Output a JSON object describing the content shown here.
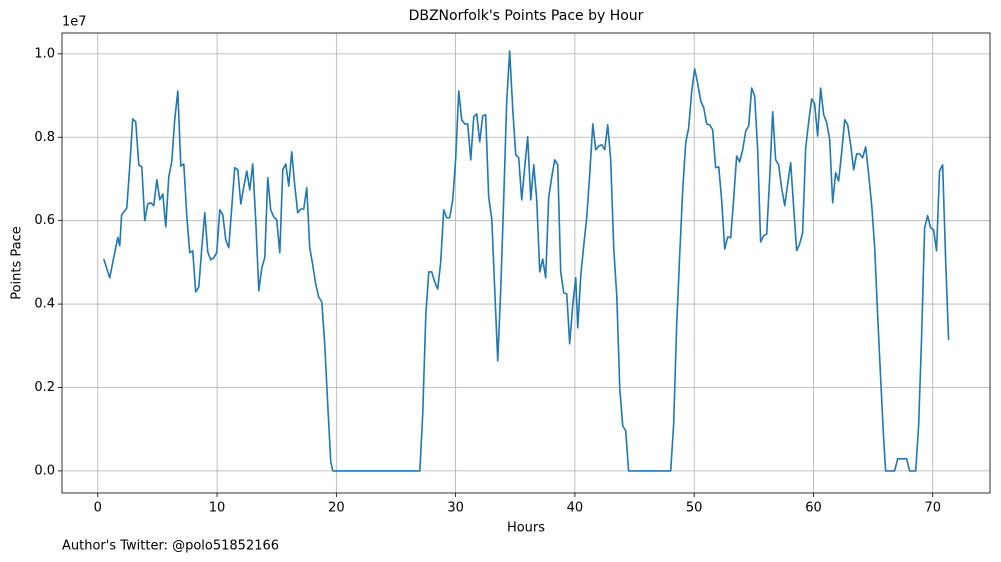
{
  "chart_data": {
    "type": "line",
    "title": "DBZNorfolk's Points Pace by Hour",
    "x_label": "Hours",
    "y_label": "Points Pace",
    "y_offset_label": "1e7",
    "xlim": [
      -3.0,
      74.8
    ],
    "xticks": [
      0,
      10,
      20,
      30,
      40,
      50,
      60,
      70
    ],
    "ylim": [
      -0.053,
      1.05
    ],
    "yticks": [
      {
        "value": 0,
        "label": "0.0"
      },
      0.2,
      0.4,
      0.6,
      0.8,
      {
        "value": 1,
        "label": "1.0"
      }
    ],
    "grid": true,
    "x": [
      0.5,
      1.0,
      1.5,
      1.68,
      1.84,
      2.0,
      2.43,
      2.68,
      2.93,
      3.18,
      3.44,
      3.69,
      3.94,
      4.19,
      4.44,
      4.69,
      4.95,
      5.2,
      5.45,
      5.7,
      5.95,
      6.2,
      6.45,
      6.71,
      6.96,
      7.21,
      7.46,
      7.71,
      7.96,
      8.21,
      8.47,
      8.72,
      8.97,
      9.22,
      9.47,
      9.72,
      9.97,
      10.23,
      10.48,
      10.73,
      10.98,
      11.23,
      11.48,
      11.74,
      11.99,
      12.24,
      12.49,
      12.74,
      12.99,
      13.24,
      13.5,
      13.75,
      14.0,
      14.25,
      14.5,
      14.75,
      15.0,
      15.26,
      15.51,
      15.76,
      16.01,
      16.26,
      16.51,
      16.76,
      17.02,
      17.27,
      17.52,
      17.77,
      18.02,
      18.27,
      18.52,
      18.78,
      19.03,
      19.28,
      19.53,
      19.7,
      27.0,
      27.24,
      27.5,
      27.75,
      28.0,
      28.25,
      28.5,
      28.75,
      29.0,
      29.25,
      29.5,
      29.76,
      30.0,
      30.26,
      30.51,
      30.76,
      31.01,
      31.27,
      31.52,
      31.77,
      32.02,
      32.27,
      32.52,
      32.77,
      33.03,
      33.28,
      33.53,
      33.78,
      34.03,
      34.28,
      34.53,
      34.79,
      35.04,
      35.29,
      35.54,
      35.79,
      36.04,
      36.3,
      36.55,
      36.8,
      37.05,
      37.3,
      37.55,
      37.8,
      38.06,
      38.31,
      38.56,
      38.81,
      39.07,
      39.32,
      39.56,
      39.82,
      40.07,
      40.24,
      40.49,
      40.74,
      40.99,
      41.24,
      41.5,
      41.75,
      42.0,
      42.25,
      42.5,
      42.75,
      43.0,
      43.26,
      43.51,
      43.76,
      44.01,
      44.26,
      44.5,
      48.03,
      48.28,
      48.53,
      48.79,
      49.04,
      49.29,
      49.54,
      49.79,
      50.04,
      50.3,
      50.55,
      50.8,
      51.05,
      51.3,
      51.55,
      51.8,
      52.06,
      52.3,
      52.56,
      52.81,
      53.06,
      53.31,
      53.56,
      53.81,
      54.07,
      54.32,
      54.57,
      54.82,
      55.07,
      55.32,
      55.57,
      55.83,
      56.08,
      56.33,
      56.58,
      56.83,
      57.08,
      57.33,
      57.59,
      57.84,
      58.09,
      58.34,
      58.59,
      58.84,
      59.09,
      59.35,
      59.6,
      59.85,
      60.1,
      60.35,
      60.6,
      60.86,
      61.11,
      61.36,
      61.61,
      61.86,
      62.11,
      62.37,
      62.62,
      62.87,
      63.12,
      63.37,
      63.62,
      63.87,
      64.12,
      64.38,
      64.63,
      64.88,
      65.13,
      65.38,
      65.63,
      65.88,
      66.05,
      66.8,
      67.06,
      67.81,
      68.06,
      68.57,
      68.82,
      69.07,
      69.32,
      69.57,
      69.82,
      70.07,
      70.32,
      70.57,
      70.83,
      71.08,
      71.33
    ],
    "series": [
      {
        "color": "#1f77b4",
        "values": [
          0.508,
          0.463,
          0.535,
          0.56,
          0.54,
          0.614,
          0.63,
          0.73,
          0.844,
          0.837,
          0.734,
          0.729,
          0.6,
          0.64,
          0.643,
          0.636,
          0.698,
          0.65,
          0.664,
          0.585,
          0.705,
          0.741,
          0.842,
          0.911,
          0.731,
          0.736,
          0.612,
          0.523,
          0.528,
          0.429,
          0.441,
          0.535,
          0.619,
          0.525,
          0.506,
          0.511,
          0.523,
          0.626,
          0.614,
          0.554,
          0.535,
          0.631,
          0.727,
          0.722,
          0.64,
          0.681,
          0.719,
          0.674,
          0.736,
          0.602,
          0.432,
          0.487,
          0.511,
          0.703,
          0.626,
          0.609,
          0.602,
          0.523,
          0.722,
          0.736,
          0.683,
          0.765,
          0.686,
          0.619,
          0.628,
          0.628,
          0.679,
          0.535,
          0.494,
          0.448,
          0.417,
          0.405,
          0.302,
          0.158,
          0.022,
          0,
          0,
          0.134,
          0.374,
          0.477,
          0.477,
          0.453,
          0.436,
          0.501,
          0.626,
          0.607,
          0.607,
          0.65,
          0.746,
          0.911,
          0.842,
          0.832,
          0.832,
          0.746,
          0.849,
          0.856,
          0.789,
          0.851,
          0.854,
          0.657,
          0.604,
          0.434,
          0.264,
          0.434,
          0.65,
          0.885,
          1.007,
          0.866,
          0.758,
          0.751,
          0.65,
          0.727,
          0.801,
          0.65,
          0.734,
          0.65,
          0.477,
          0.508,
          0.463,
          0.655,
          0.705,
          0.746,
          0.734,
          0.477,
          0.427,
          0.424,
          0.305,
          0.398,
          0.463,
          0.343,
          0.468,
          0.54,
          0.607,
          0.71,
          0.832,
          0.77,
          0.779,
          0.782,
          0.77,
          0.83,
          0.746,
          0.532,
          0.42,
          0.199,
          0.108,
          0.096,
          0,
          0,
          0.113,
          0.348,
          0.52,
          0.674,
          0.787,
          0.823,
          0.909,
          0.964,
          0.928,
          0.887,
          0.871,
          0.832,
          0.83,
          0.818,
          0.727,
          0.729,
          0.65,
          0.532,
          0.561,
          0.559,
          0.652,
          0.755,
          0.741,
          0.77,
          0.815,
          0.827,
          0.918,
          0.899,
          0.772,
          0.549,
          0.564,
          0.568,
          0.703,
          0.861,
          0.746,
          0.734,
          0.679,
          0.636,
          0.688,
          0.739,
          0.631,
          0.528,
          0.544,
          0.571,
          0.775,
          0.837,
          0.892,
          0.88,
          0.803,
          0.918,
          0.854,
          0.835,
          0.794,
          0.643,
          0.715,
          0.695,
          0.765,
          0.842,
          0.83,
          0.782,
          0.722,
          0.76,
          0.76,
          0.751,
          0.777,
          0.71,
          0.638,
          0.537,
          0.374,
          0.223,
          0.079,
          0,
          0,
          0.029,
          0.029,
          0,
          0,
          0.11,
          0.326,
          0.583,
          0.612,
          0.583,
          0.578,
          0.528,
          0.719,
          0.734,
          0.506,
          0.314
        ]
      }
    ]
  },
  "footnote": "Author's Twitter: @polo51852166"
}
